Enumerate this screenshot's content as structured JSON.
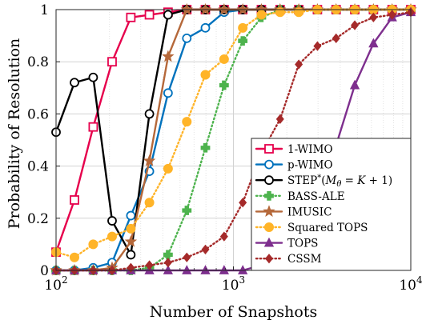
{
  "chart_data": {
    "type": "line",
    "xlabel": "Number of Snapshots",
    "ylabel": "Probability of Resolution",
    "xscale": "log",
    "xlim": [
      100,
      10000
    ],
    "ylim": [
      0,
      1
    ],
    "xticks": [
      100,
      1000,
      10000
    ],
    "xtick_labels": [
      {
        "base": "10",
        "exp": "2"
      },
      {
        "base": "10",
        "exp": "3"
      },
      {
        "base": "10",
        "exp": "4"
      }
    ],
    "yticks": [
      0,
      0.2,
      0.4,
      0.6,
      0.8,
      1
    ],
    "ytick_labels": [
      "0",
      "0.2",
      "0.4",
      "0.6",
      "0.8",
      "1"
    ],
    "grid": true,
    "legend_position": "lower-right",
    "series": [
      {
        "name": "1-WIMO",
        "color": "#e6004c",
        "marker": "square",
        "dash": "solid",
        "x": [
          100,
          127,
          162,
          207,
          264,
          336,
          428,
          546,
          695,
          886,
          1129,
          1438,
          1833,
          2336,
          2976,
          3793,
          4833,
          6158,
          7848,
          10000
        ],
        "y": [
          0.07,
          0.27,
          0.55,
          0.8,
          0.97,
          0.98,
          0.99,
          1,
          1,
          1,
          1,
          1,
          1,
          1,
          1,
          1,
          1,
          1,
          1,
          1
        ]
      },
      {
        "name": "p-WIMO",
        "color": "#0072bd",
        "marker": "circle",
        "dash": "solid",
        "x": [
          100,
          127,
          162,
          207,
          264,
          336,
          428,
          546,
          695,
          886,
          1129,
          1438,
          1833,
          2336,
          2976,
          3793,
          4833,
          6158,
          7848,
          10000
        ],
        "y": [
          0,
          0,
          0.01,
          0.03,
          0.21,
          0.38,
          0.68,
          0.89,
          0.93,
          0.99,
          1,
          1,
          1,
          1,
          1,
          1,
          1,
          1,
          1,
          1
        ]
      },
      {
        "name": "STEP*(M_θ = K + 1)",
        "color": "#000000",
        "marker": "circle",
        "dash": "solid",
        "x": [
          100,
          127,
          162,
          207,
          264,
          336,
          428,
          546,
          695,
          886,
          1129,
          1438,
          1833,
          2336,
          2976,
          3793,
          4833,
          6158,
          7848,
          10000
        ],
        "y": [
          0.53,
          0.72,
          0.74,
          0.19,
          0.06,
          0.6,
          0.98,
          1,
          1,
          1,
          1,
          1,
          1,
          1,
          1,
          1,
          1,
          1,
          1,
          1
        ]
      },
      {
        "name": "BASS-ALE",
        "color": "#4db34d",
        "marker": "plus",
        "dash": "dotted",
        "x": [
          100,
          127,
          162,
          207,
          264,
          336,
          428,
          546,
          695,
          886,
          1129,
          1438,
          1833,
          2336,
          2976,
          3793,
          4833,
          6158,
          7848,
          10000
        ],
        "y": [
          0,
          0,
          0,
          0,
          0,
          0.01,
          0.06,
          0.23,
          0.47,
          0.71,
          0.88,
          0.97,
          1,
          1,
          1,
          1,
          1,
          1,
          1,
          1
        ]
      },
      {
        "name": "IMUSIC",
        "color": "#b5683a",
        "marker": "star",
        "dash": "solid",
        "x": [
          100,
          127,
          162,
          207,
          264,
          336,
          428,
          546,
          695,
          886,
          1129,
          1438,
          1833,
          2336,
          2976,
          3793,
          4833,
          6158,
          7848,
          10000
        ],
        "y": [
          0,
          0,
          0,
          0.01,
          0.11,
          0.42,
          0.82,
          1,
          1,
          1,
          1,
          1,
          1,
          1,
          1,
          1,
          1,
          1,
          1,
          1
        ]
      },
      {
        "name": "Squared TOPS",
        "color": "#ffb428",
        "marker": "circle-filled",
        "dash": "dotted",
        "x": [
          100,
          127,
          162,
          207,
          264,
          336,
          428,
          546,
          695,
          886,
          1129,
          1438,
          1833,
          2336,
          2976,
          3793,
          4833,
          6158,
          7848,
          10000
        ],
        "y": [
          0.07,
          0.05,
          0.1,
          0.13,
          0.16,
          0.26,
          0.39,
          0.57,
          0.75,
          0.81,
          0.93,
          0.98,
          0.99,
          0.99,
          1,
          1,
          1,
          1,
          1,
          1
        ]
      },
      {
        "name": "TOPS",
        "color": "#7e2f8e",
        "marker": "triangle",
        "dash": "solid",
        "x": [
          100,
          127,
          162,
          207,
          264,
          336,
          428,
          546,
          695,
          886,
          1129,
          1438,
          1833,
          2336,
          2976,
          3793,
          4833,
          6158,
          7848,
          10000
        ],
        "y": [
          0,
          0,
          0,
          0,
          0,
          0,
          0,
          0,
          0,
          0,
          0,
          0.02,
          0.05,
          0.1,
          0.24,
          0.48,
          0.71,
          0.87,
          0.97,
          0.99
        ]
      },
      {
        "name": "CSSM",
        "color": "#a52a2a",
        "marker": "diamond",
        "dash": "dotted",
        "x": [
          100,
          127,
          162,
          207,
          264,
          336,
          428,
          546,
          695,
          886,
          1129,
          1438,
          1833,
          2336,
          2976,
          3793,
          4833,
          6158,
          7848,
          10000
        ],
        "y": [
          0,
          0,
          0,
          0,
          0.01,
          0.02,
          0.03,
          0.05,
          0.08,
          0.13,
          0.26,
          0.45,
          0.58,
          0.79,
          0.86,
          0.89,
          0.94,
          0.97,
          0.98,
          0.99
        ]
      }
    ]
  }
}
